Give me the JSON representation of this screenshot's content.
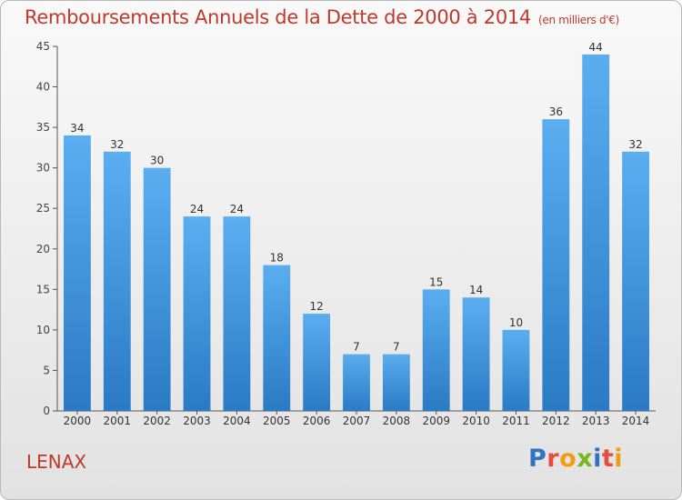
{
  "chart_data": {
    "type": "bar",
    "title": "Remboursements Annuels de la Dette de 2000 à 2014",
    "subtitle": "(en milliers d'€)",
    "categories": [
      "2000",
      "2001",
      "2002",
      "2003",
      "2004",
      "2005",
      "2006",
      "2007",
      "2008",
      "2009",
      "2010",
      "2011",
      "2012",
      "2013",
      "2014"
    ],
    "values": [
      34,
      32,
      30,
      24,
      24,
      18,
      12,
      7,
      7,
      15,
      14,
      10,
      36,
      44,
      32
    ],
    "ylim": [
      0,
      45
    ],
    "yticks": [
      0,
      5,
      10,
      15,
      20,
      25,
      30,
      35,
      40,
      45
    ],
    "grid": false,
    "bar_color": "#3a8fd6"
  },
  "footer": {
    "city": "LENAX",
    "logo_text": "Proxiti"
  },
  "colors": {
    "title": "#c0392b",
    "bar_top": "#5aaef0",
    "bar_bottom": "#2a7ac4"
  }
}
